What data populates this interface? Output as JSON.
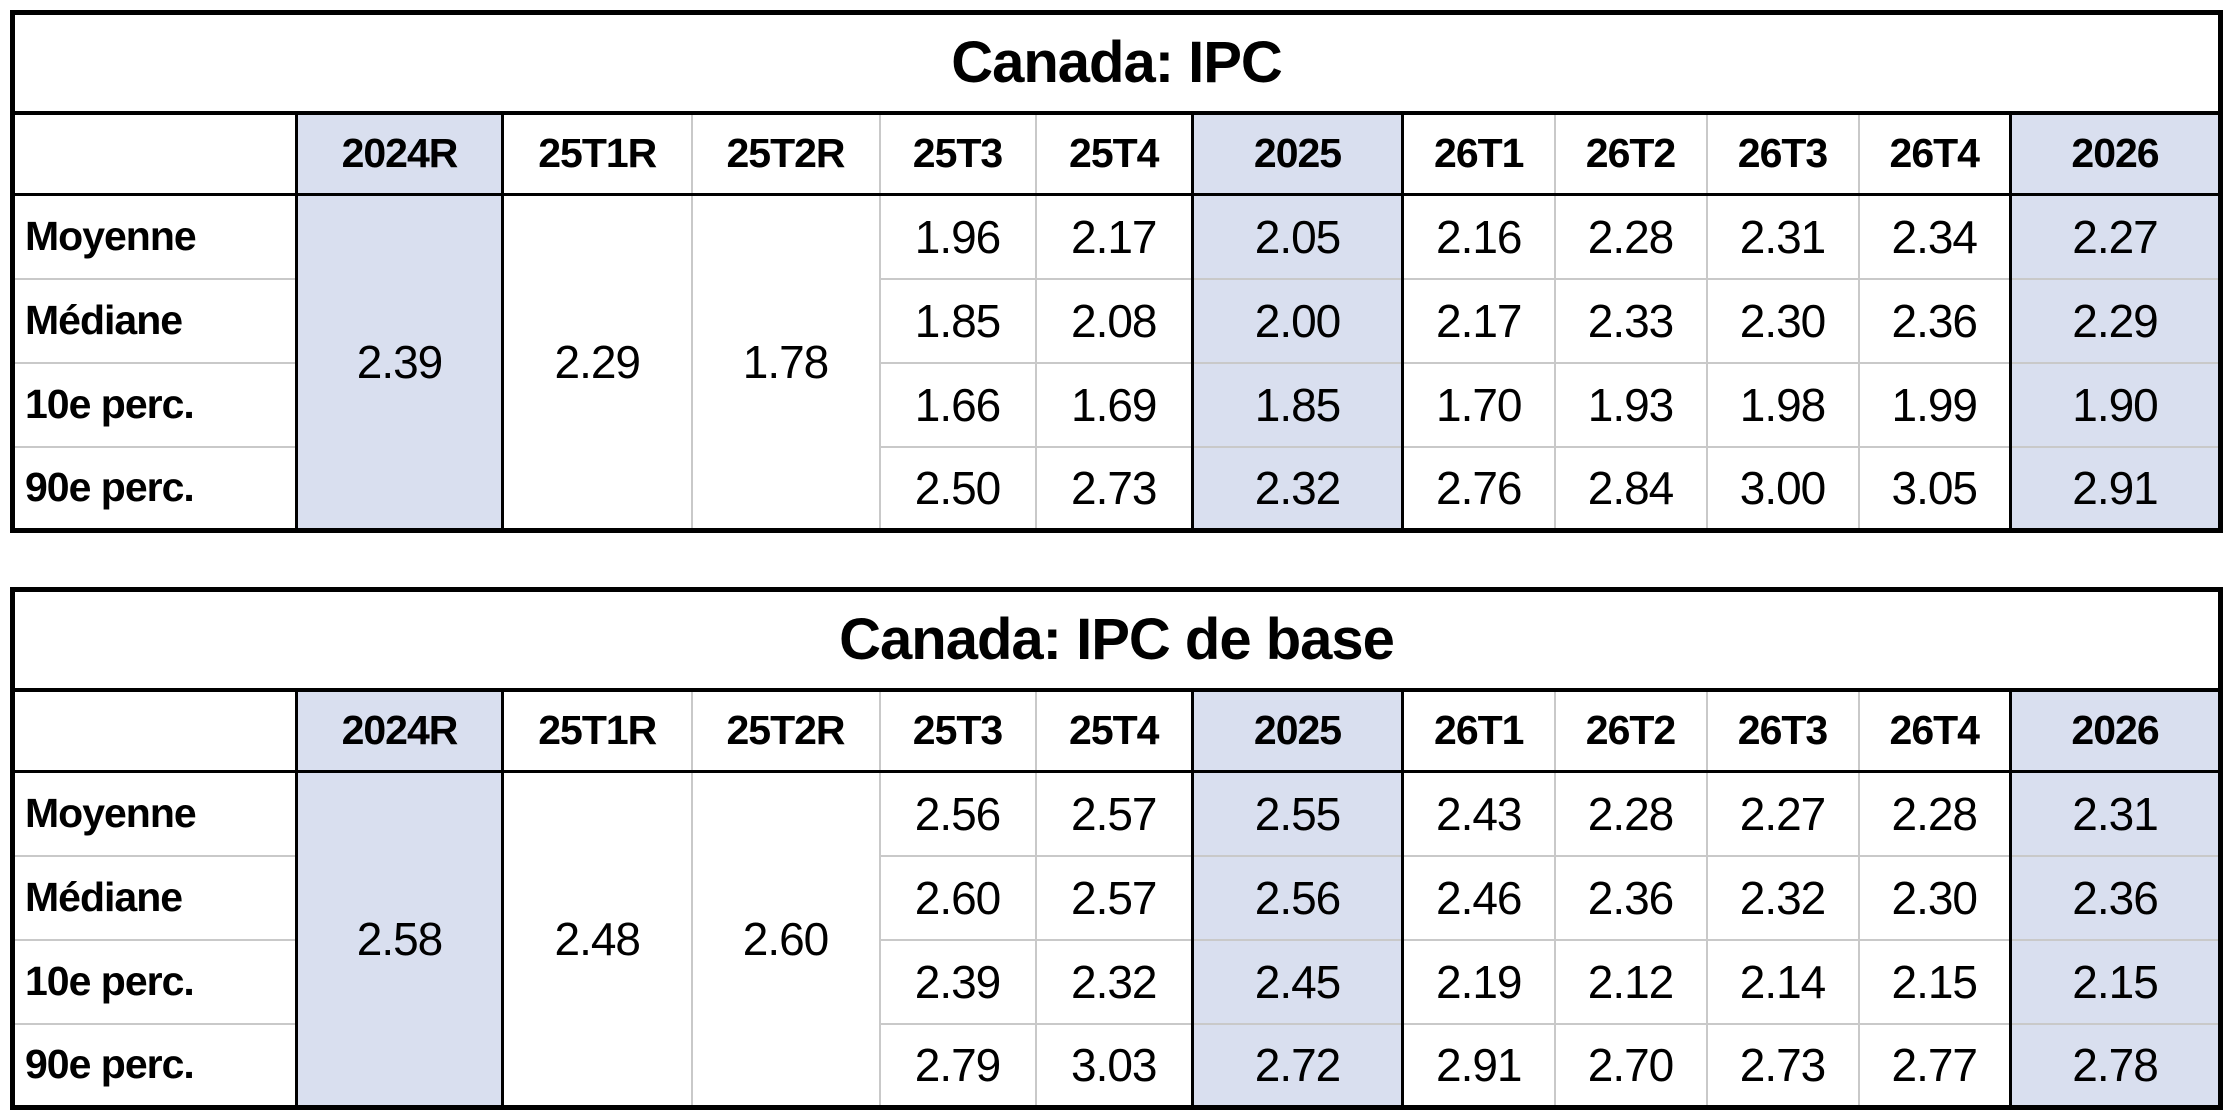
{
  "colors": {
    "highlight_column": "#d9dfef",
    "grid_light": "#c9c9c9",
    "grid_dark": "#000000",
    "text": "#000000",
    "background": "#ffffff"
  },
  "tables": [
    {
      "title": "Canada: IPC",
      "columns": [
        "",
        "2024R",
        "25T1R",
        "25T2R",
        "25T3",
        "25T4",
        "2025",
        "26T1",
        "26T2",
        "26T3",
        "26T4",
        "2026"
      ],
      "highlighted_columns": [
        "2024R",
        "2025",
        "2026"
      ],
      "merged_cells": [
        {
          "column": "2024R",
          "value": "2.39"
        },
        {
          "column": "25T1R",
          "value": "2.29"
        },
        {
          "column": "25T2R",
          "value": "1.78"
        }
      ],
      "rows": [
        {
          "label": "Moyenne",
          "values": [
            "1.96",
            "2.17",
            "2.05",
            "2.16",
            "2.28",
            "2.31",
            "2.34",
            "2.27"
          ]
        },
        {
          "label": "Médiane",
          "values": [
            "1.85",
            "2.08",
            "2.00",
            "2.17",
            "2.33",
            "2.30",
            "2.36",
            "2.29"
          ]
        },
        {
          "label": "10e perc.",
          "values": [
            "1.66",
            "1.69",
            "1.85",
            "1.70",
            "1.93",
            "1.98",
            "1.99",
            "1.90"
          ]
        },
        {
          "label": "90e perc.",
          "values": [
            "2.50",
            "2.73",
            "2.32",
            "2.76",
            "2.84",
            "3.00",
            "3.05",
            "2.91"
          ]
        }
      ]
    },
    {
      "title": "Canada: IPC de base",
      "columns": [
        "",
        "2024R",
        "25T1R",
        "25T2R",
        "25T3",
        "25T4",
        "2025",
        "26T1",
        "26T2",
        "26T3",
        "26T4",
        "2026"
      ],
      "highlighted_columns": [
        "2024R",
        "2025",
        "2026"
      ],
      "merged_cells": [
        {
          "column": "2024R",
          "value": "2.58"
        },
        {
          "column": "25T1R",
          "value": "2.48"
        },
        {
          "column": "25T2R",
          "value": "2.60"
        }
      ],
      "rows": [
        {
          "label": "Moyenne",
          "values": [
            "2.56",
            "2.57",
            "2.55",
            "2.43",
            "2.28",
            "2.27",
            "2.28",
            "2.31"
          ]
        },
        {
          "label": "Médiane",
          "values": [
            "2.60",
            "2.57",
            "2.56",
            "2.46",
            "2.36",
            "2.32",
            "2.30",
            "2.36"
          ]
        },
        {
          "label": "10e perc.",
          "values": [
            "2.39",
            "2.32",
            "2.45",
            "2.19",
            "2.12",
            "2.14",
            "2.15",
            "2.15"
          ]
        },
        {
          "label": "90e perc.",
          "values": [
            "2.79",
            "3.03",
            "2.72",
            "2.91",
            "2.70",
            "2.73",
            "2.77",
            "2.78"
          ]
        }
      ]
    }
  ],
  "chart_data": [
    {
      "type": "table",
      "title": "Canada: IPC",
      "columns": [
        "2024R",
        "25T1R",
        "25T2R",
        "25T3",
        "25T4",
        "2025",
        "26T1",
        "26T2",
        "26T3",
        "26T4",
        "2026"
      ],
      "row_labels": [
        "Moyenne",
        "Médiane",
        "10e perc.",
        "90e perc."
      ],
      "merged_history": {
        "2024R": 2.39,
        "25T1R": 2.29,
        "25T2R": 1.78
      },
      "series": [
        {
          "name": "Moyenne",
          "values": {
            "25T3": 1.96,
            "25T4": 2.17,
            "2025": 2.05,
            "26T1": 2.16,
            "26T2": 2.28,
            "26T3": 2.31,
            "26T4": 2.34,
            "2026": 2.27
          }
        },
        {
          "name": "Médiane",
          "values": {
            "25T3": 1.85,
            "25T4": 2.08,
            "2025": 2.0,
            "26T1": 2.17,
            "26T2": 2.33,
            "26T3": 2.3,
            "26T4": 2.36,
            "2026": 2.29
          }
        },
        {
          "name": "10e perc.",
          "values": {
            "25T3": 1.66,
            "25T4": 1.69,
            "2025": 1.85,
            "26T1": 1.7,
            "26T2": 1.93,
            "26T3": 1.98,
            "26T4": 1.99,
            "2026": 1.9
          }
        },
        {
          "name": "90e perc.",
          "values": {
            "25T3": 2.5,
            "25T4": 2.73,
            "2025": 2.32,
            "26T1": 2.76,
            "26T2": 2.84,
            "26T3": 3.0,
            "26T4": 3.05,
            "2026": 2.91
          }
        }
      ],
      "layout_hints": {
        "highlighted_columns": [
          "2024R",
          "2025",
          "2026"
        ],
        "grid": true
      }
    },
    {
      "type": "table",
      "title": "Canada: IPC de base",
      "columns": [
        "2024R",
        "25T1R",
        "25T2R",
        "25T3",
        "25T4",
        "2025",
        "26T1",
        "26T2",
        "26T3",
        "26T4",
        "2026"
      ],
      "row_labels": [
        "Moyenne",
        "Médiane",
        "10e perc.",
        "90e perc."
      ],
      "merged_history": {
        "2024R": 2.58,
        "25T1R": 2.48,
        "25T2R": 2.6
      },
      "series": [
        {
          "name": "Moyenne",
          "values": {
            "25T3": 2.56,
            "25T4": 2.57,
            "2025": 2.55,
            "26T1": 2.43,
            "26T2": 2.28,
            "26T3": 2.27,
            "26T4": 2.28,
            "2026": 2.31
          }
        },
        {
          "name": "Médiane",
          "values": {
            "25T3": 2.6,
            "25T4": 2.57,
            "2025": 2.56,
            "26T1": 2.46,
            "26T2": 2.36,
            "26T3": 2.32,
            "26T4": 2.3,
            "2026": 2.36
          }
        },
        {
          "name": "10e perc.",
          "values": {
            "25T3": 2.39,
            "25T4": 2.32,
            "2025": 2.45,
            "26T1": 2.19,
            "26T2": 2.12,
            "26T3": 2.14,
            "26T4": 2.15,
            "2026": 2.15
          }
        },
        {
          "name": "90e perc.",
          "values": {
            "25T3": 2.79,
            "25T4": 3.03,
            "2025": 2.72,
            "26T1": 2.91,
            "26T2": 2.7,
            "26T3": 2.73,
            "26T4": 2.77,
            "2026": 2.78
          }
        }
      ],
      "layout_hints": {
        "highlighted_columns": [
          "2024R",
          "2025",
          "2026"
        ],
        "grid": true
      }
    }
  ]
}
